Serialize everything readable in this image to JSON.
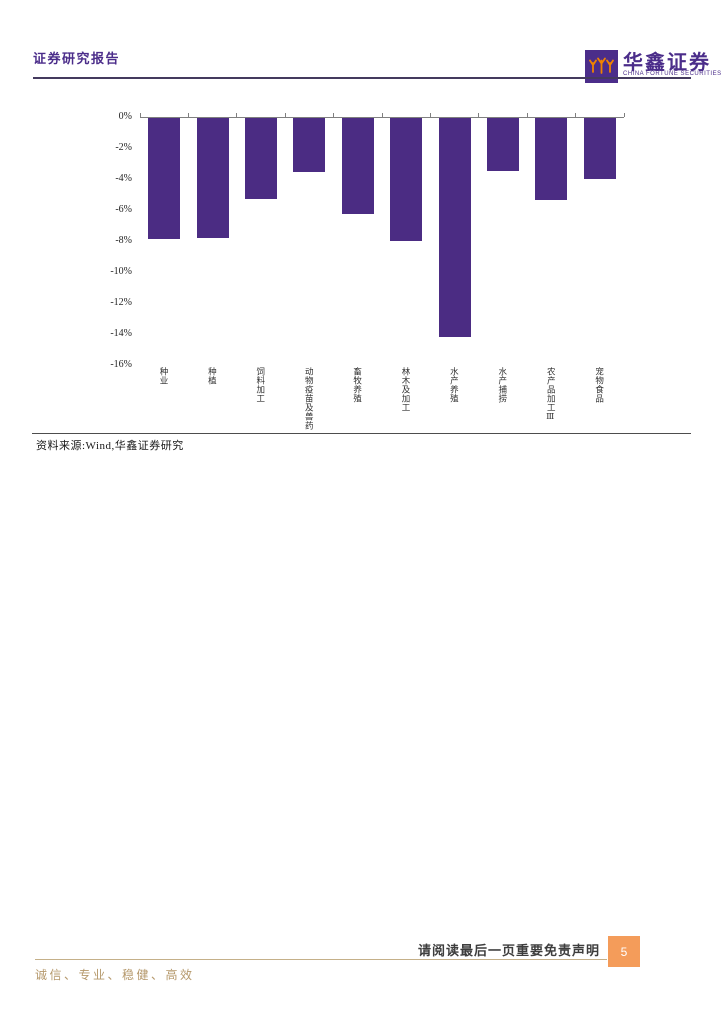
{
  "header": {
    "report_type": "证券研究报告",
    "brand_cn": "华鑫证券",
    "brand_en": "CHINA FORTUNE SECURITIES",
    "logo_icon": "huaxin-logo-mark"
  },
  "chart_data": {
    "type": "bar",
    "title": "",
    "categories": [
      "种业",
      "种植",
      "饲料加工",
      "动物疫苗及兽药",
      "畜牧养殖",
      "林木及加工",
      "水产养殖",
      "水产捕捞",
      "农产品加工Ⅲ",
      "宠物食品"
    ],
    "values": [
      -7.8,
      -7.7,
      -5.2,
      -3.5,
      -6.2,
      -7.9,
      -14.1,
      -3.4,
      -5.3,
      -3.9
    ],
    "unit": "%",
    "xlabel": "",
    "ylabel": "",
    "ylim": [
      -16,
      0
    ],
    "ytick_labels": [
      "0%",
      "-2%",
      "-4%",
      "-6%",
      "-8%",
      "-10%",
      "-12%",
      "-14%",
      "-16%"
    ],
    "grid": false,
    "legend": null,
    "bar_color": "#4B2C83"
  },
  "figure": {
    "source_note": "资料来源:Wind,华鑫证券研究"
  },
  "footer": {
    "disclaimer": "请阅读最后一页重要免责声明",
    "page_number": "5",
    "motto": "诚信、专业、稳健、高效"
  },
  "colors": {
    "brand_purple": "#4B2D8A",
    "bar_purple": "#4B2C83",
    "axis_gray": "#7F7F7F",
    "page_badge_orange": "#F49C5A",
    "footer_gold": "#B5986B",
    "header_rule_dark": "#443A5E"
  }
}
